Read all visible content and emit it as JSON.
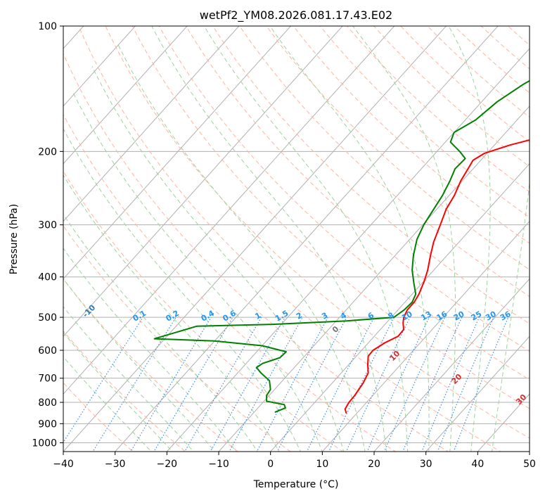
{
  "chart_data": {
    "type": "line",
    "subtype": "skew-t log-p diagram",
    "title": "wetPf2_YM08.2026.081.17.43.E02",
    "xlabel": "Temperature (°C)",
    "ylabel": "Pressure (hPa)",
    "xlim": [
      -40,
      50
    ],
    "ylim": [
      1050,
      100
    ],
    "y_scale": "log",
    "grid": true,
    "x_ticks": [
      "−40",
      "−30",
      "−20",
      "−10",
      "0",
      "10",
      "20",
      "30",
      "40",
      "50"
    ],
    "x_tick_values": [
      -40,
      -30,
      -20,
      -10,
      0,
      10,
      20,
      30,
      40,
      50
    ],
    "y_ticks": [
      "100",
      "200",
      "300",
      "400",
      "500",
      "600",
      "700",
      "800",
      "900",
      "1000"
    ],
    "y_tick_values": [
      100,
      200,
      300,
      400,
      500,
      600,
      700,
      800,
      900,
      1000
    ],
    "series": [
      {
        "role": "temperature",
        "color": "#ff0000",
        "points": [
          [
            8,
            850
          ],
          [
            7,
            830
          ],
          [
            6.6,
            800
          ],
          [
            6.5,
            770
          ],
          [
            6,
            720
          ],
          [
            5.2,
            680
          ],
          [
            3.7,
            650
          ],
          [
            2.3,
            620
          ],
          [
            2.2,
            600
          ],
          [
            3.2,
            575
          ],
          [
            4.6,
            555
          ],
          [
            4.5,
            535
          ],
          [
            3.2,
            515
          ],
          [
            2.4,
            500
          ],
          [
            1.8,
            480
          ],
          [
            1.8,
            460
          ],
          [
            1.3,
            440
          ],
          [
            0.1,
            410
          ],
          [
            -1.2,
            385
          ],
          [
            -3.2,
            355
          ],
          [
            -4.9,
            330
          ],
          [
            -6.6,
            300
          ],
          [
            -8.2,
            275
          ],
          [
            -9,
            255
          ],
          [
            -10.3,
            235
          ],
          [
            -11,
            220
          ],
          [
            -11.5,
            210
          ],
          [
            -10.5,
            202
          ],
          [
            -7,
            193
          ],
          [
            -1.5,
            183
          ],
          [
            3,
            172
          ],
          [
            7.5,
            160
          ],
          [
            10.5,
            148
          ],
          [
            13,
            137
          ],
          [
            15.5,
            127
          ],
          [
            18,
            118
          ],
          [
            20,
            110
          ],
          [
            21.3,
            102
          ],
          [
            21,
            100
          ]
        ]
      },
      {
        "role": "dewpoint",
        "color": "#008000",
        "points": [
          [
            -6,
            845
          ],
          [
            -4.7,
            825
          ],
          [
            -5.5,
            810
          ],
          [
            -9.5,
            795
          ],
          [
            -10.5,
            770
          ],
          [
            -10.8,
            745
          ],
          [
            -12.5,
            710
          ],
          [
            -15.5,
            680
          ],
          [
            -17.3,
            660
          ],
          [
            -16.8,
            645
          ],
          [
            -14.5,
            625
          ],
          [
            -14.3,
            605
          ],
          [
            -20,
            585
          ],
          [
            -30,
            570
          ],
          [
            -42,
            563
          ],
          [
            -36,
            525
          ],
          [
            -22,
            520
          ],
          [
            -8,
            510
          ],
          [
            0.5,
            500
          ],
          [
            1.2,
            480
          ],
          [
            1.4,
            460
          ],
          [
            0.7,
            440
          ],
          [
            -1.5,
            415
          ],
          [
            -4.2,
            385
          ],
          [
            -6.5,
            355
          ],
          [
            -8.6,
            325
          ],
          [
            -9.8,
            300
          ],
          [
            -10.6,
            275
          ],
          [
            -11.3,
            255
          ],
          [
            -12.4,
            235
          ],
          [
            -13.5,
            220
          ],
          [
            -13.3,
            208
          ],
          [
            -15.6,
            200
          ],
          [
            -19,
            190
          ],
          [
            -20,
            180
          ],
          [
            -18,
            168
          ],
          [
            -17,
            152
          ],
          [
            -15,
            138
          ],
          [
            -12,
            125
          ],
          [
            -8.5,
            113
          ],
          [
            -4.5,
            100
          ]
        ]
      }
    ],
    "annotations": {
      "dry_adiabats_C": [
        "-100",
        "-90",
        "-80",
        "-70",
        "-60",
        "-50",
        "-40",
        "-30",
        "-20",
        "-10"
      ],
      "mixing_ratios_gkg": [
        "0.1",
        "0.2",
        "0.4",
        "0.6",
        "1",
        "1.5",
        "2",
        "3",
        "4",
        "6",
        "8",
        "10",
        "13",
        "16",
        "20",
        "25",
        "30",
        "36"
      ],
      "moist_adiabats_C": [
        "0",
        "10",
        "20",
        "30",
        "40"
      ]
    },
    "colors": {
      "temperature": "#ff0000",
      "dewpoint": "#008000",
      "dry_adiabat": "#ffb49c",
      "moist_adiabat": "#9cd29c",
      "mixing_ratio": "#3c8ce6",
      "dry_label": "#2a7bbd",
      "mixing_label": "#2196f3",
      "moist_label": "#d32f2f"
    }
  }
}
